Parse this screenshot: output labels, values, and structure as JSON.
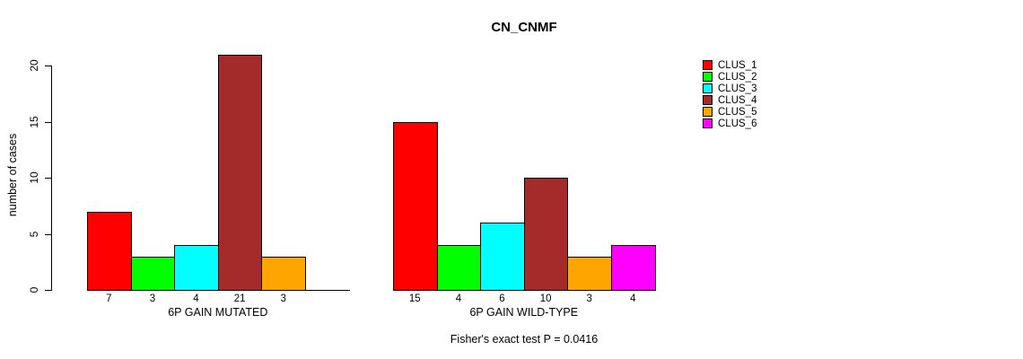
{
  "chart_data": {
    "type": "bar",
    "title": "CN_CNMF",
    "ylabel": "number of cases",
    "xlabel": "",
    "ylim": [
      0,
      21
    ],
    "yticks": [
      0,
      5,
      10,
      15,
      20
    ],
    "grid": false,
    "legend_position": "right",
    "colors": [
      "#FF0000",
      "#00FF00",
      "#00FFFF",
      "#A52A2A",
      "#FFA500",
      "#FF00FF"
    ],
    "legend": [
      {
        "label": "CLUS_1",
        "color": "#FF0000"
      },
      {
        "label": "CLUS_2",
        "color": "#00FF00"
      },
      {
        "label": "CLUS_3",
        "color": "#00FFFF"
      },
      {
        "label": "CLUS_4",
        "color": "#A52A2A"
      },
      {
        "label": "CLUS_5",
        "color": "#FFA500"
      },
      {
        "label": "CLUS_6",
        "color": "#FF00FF"
      }
    ],
    "groups": [
      {
        "label": "6P GAIN MUTATED",
        "values": [
          7,
          3,
          4,
          21,
          3
        ],
        "slots": 6
      },
      {
        "label": "6P GAIN WILD-TYPE",
        "values": [
          15,
          4,
          6,
          10,
          3,
          4
        ],
        "slots": 6
      }
    ],
    "annotation": "Fisher's exact test P = 0.0416"
  }
}
